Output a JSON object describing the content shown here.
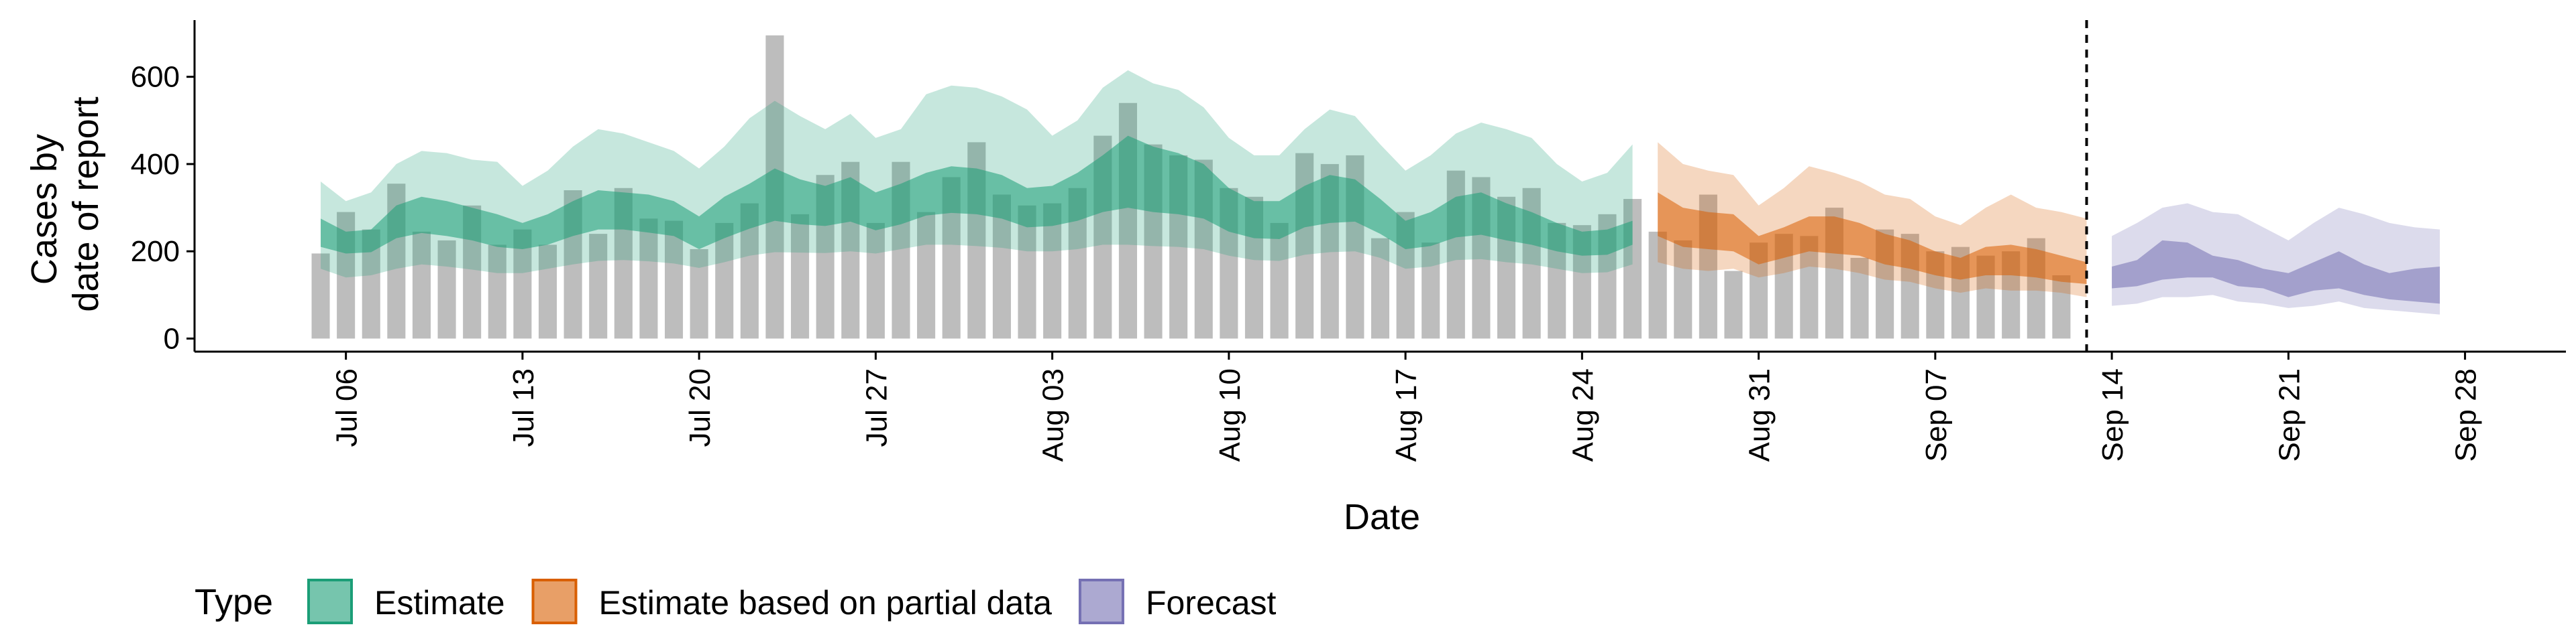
{
  "chart_data": {
    "type": "area",
    "x_axis": {
      "label": "Date",
      "tick_labels": [
        "Jul 06",
        "Jul 13",
        "Jul 20",
        "Jul 27",
        "Aug 03",
        "Aug 10",
        "Aug 17",
        "Aug 24",
        "Aug 31",
        "Sep 07",
        "Sep 14",
        "Sep 21",
        "Sep 28"
      ],
      "tick_dates": [
        "2020-07-06",
        "2020-07-13",
        "2020-07-20",
        "2020-07-27",
        "2020-08-03",
        "2020-08-10",
        "2020-08-17",
        "2020-08-24",
        "2020-08-31",
        "2020-09-07",
        "2020-09-14",
        "2020-09-21",
        "2020-09-28"
      ],
      "range": [
        "2020-06-30",
        "2020-10-02"
      ]
    },
    "y_axis": {
      "label_lines": [
        "Cases by",
        "date of report"
      ],
      "ticks": [
        0,
        200,
        400,
        600
      ],
      "range": [
        -30,
        730
      ]
    },
    "grid": false,
    "forecast_date": "2020-09-13",
    "colors": {
      "bars": "#bdbdbd",
      "Estimate": "#1b9e77",
      "Estimate based on partial data": "#d95f02",
      "Forecast": "#7570b3",
      "vline": "#000000"
    },
    "reported_cases": {
      "start_date": "2020-07-05",
      "values": [
        195,
        290,
        250,
        355,
        245,
        225,
        305,
        215,
        250,
        215,
        340,
        240,
        345,
        275,
        270,
        205,
        265,
        310,
        695,
        285,
        375,
        405,
        265,
        405,
        290,
        370,
        450,
        330,
        305,
        310,
        345,
        465,
        540,
        445,
        420,
        410,
        345,
        325,
        265,
        425,
        400,
        420,
        230,
        290,
        220,
        385,
        370,
        325,
        345,
        265,
        260,
        285,
        320,
        245,
        225,
        330,
        155,
        220,
        240,
        235,
        300,
        185,
        250,
        240,
        200,
        210,
        190,
        200,
        230,
        145
      ]
    },
    "series": [
      {
        "name": "Estimate",
        "start_date": "2020-07-05",
        "lower90": [
          160,
          140,
          145,
          160,
          170,
          165,
          158,
          150,
          150,
          160,
          170,
          178,
          180,
          177,
          172,
          162,
          175,
          190,
          198,
          197,
          196,
          200,
          195,
          205,
          215,
          215,
          212,
          208,
          200,
          200,
          205,
          215,
          215,
          212,
          210,
          205,
          190,
          180,
          178,
          192,
          198,
          200,
          185,
          160,
          165,
          180,
          182,
          175,
          170,
          160,
          150,
          152,
          170
        ],
        "lower50": [
          210,
          195,
          198,
          230,
          242,
          235,
          225,
          210,
          205,
          215,
          235,
          250,
          250,
          243,
          235,
          205,
          230,
          252,
          270,
          262,
          258,
          268,
          248,
          262,
          282,
          288,
          285,
          275,
          255,
          258,
          270,
          290,
          300,
          290,
          285,
          275,
          245,
          230,
          228,
          255,
          265,
          268,
          240,
          205,
          212,
          232,
          238,
          225,
          215,
          200,
          190,
          192,
          215
        ],
        "upper50": [
          275,
          245,
          250,
          305,
          325,
          315,
          300,
          285,
          265,
          285,
          315,
          340,
          335,
          330,
          315,
          280,
          325,
          355,
          390,
          365,
          350,
          370,
          335,
          355,
          380,
          395,
          390,
          375,
          345,
          350,
          380,
          420,
          465,
          440,
          425,
          400,
          345,
          315,
          315,
          350,
          375,
          365,
          320,
          270,
          290,
          325,
          335,
          310,
          290,
          265,
          245,
          250,
          270
        ],
        "upper90": [
          360,
          315,
          335,
          400,
          430,
          425,
          410,
          405,
          350,
          385,
          440,
          480,
          470,
          450,
          430,
          390,
          440,
          505,
          545,
          510,
          480,
          515,
          460,
          480,
          560,
          580,
          575,
          555,
          525,
          465,
          500,
          575,
          615,
          585,
          570,
          530,
          460,
          420,
          420,
          480,
          525,
          510,
          445,
          385,
          420,
          470,
          495,
          480,
          460,
          400,
          360,
          380,
          445
        ]
      },
      {
        "name": "Estimate based on partial data",
        "start_date": "2020-08-27",
        "lower90": [
          175,
          160,
          155,
          160,
          140,
          150,
          165,
          160,
          150,
          135,
          130,
          115,
          105,
          115,
          110,
          110,
          105,
          95
        ],
        "lower50": [
          235,
          210,
          205,
          200,
          170,
          185,
          200,
          195,
          190,
          170,
          160,
          145,
          135,
          145,
          145,
          140,
          130,
          125
        ],
        "upper50": [
          335,
          300,
          290,
          285,
          235,
          255,
          280,
          280,
          265,
          240,
          225,
          200,
          185,
          210,
          215,
          205,
          190,
          175
        ],
        "upper90": [
          450,
          400,
          385,
          375,
          305,
          345,
          395,
          380,
          360,
          330,
          320,
          280,
          260,
          300,
          330,
          300,
          290,
          275
        ]
      },
      {
        "name": "Forecast",
        "start_date": "2020-09-14",
        "lower90": [
          75,
          80,
          95,
          95,
          100,
          85,
          80,
          70,
          75,
          85,
          70,
          65,
          60,
          55
        ],
        "lower50": [
          115,
          120,
          135,
          140,
          140,
          120,
          115,
          95,
          110,
          115,
          100,
          90,
          85,
          80
        ],
        "upper50": [
          165,
          180,
          225,
          220,
          190,
          180,
          160,
          150,
          175,
          200,
          170,
          150,
          160,
          165
        ],
        "upper90": [
          235,
          265,
          300,
          310,
          290,
          285,
          255,
          225,
          265,
          300,
          285,
          265,
          255,
          250
        ]
      }
    ],
    "legend": {
      "title": "Type",
      "position": "bottom",
      "entries": [
        "Estimate",
        "Estimate based on partial data",
        "Forecast"
      ]
    }
  }
}
